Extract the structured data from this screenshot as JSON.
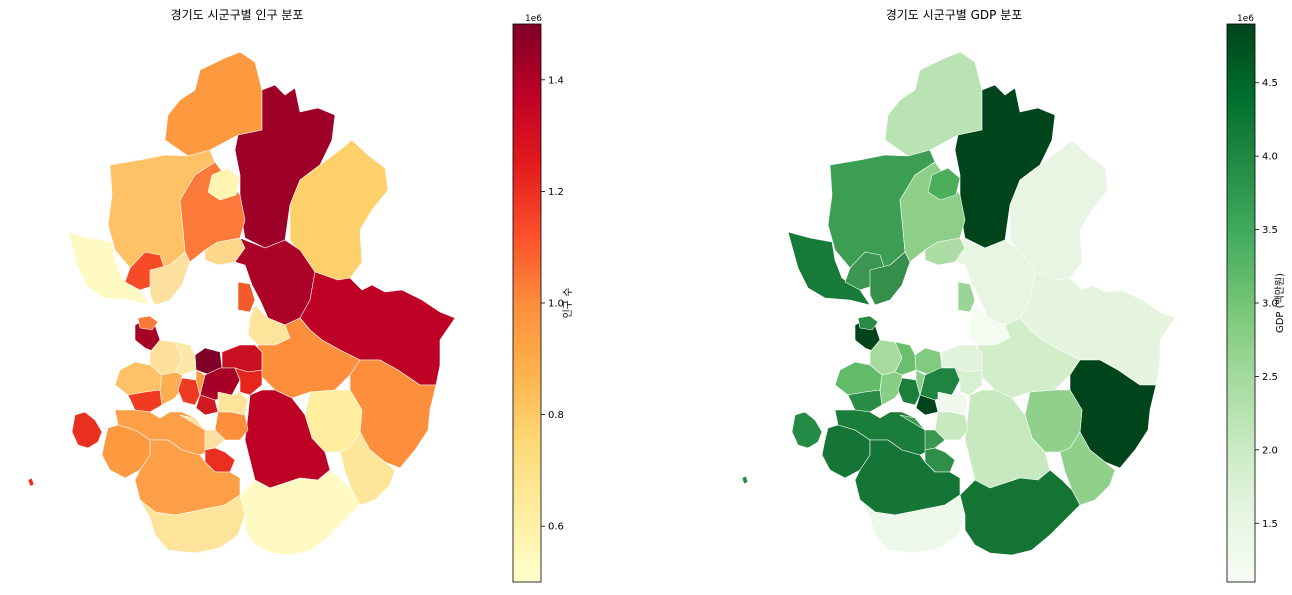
{
  "maps": [
    {
      "title": "경기도 시군구별 인구 분포",
      "colorbar": {
        "label": "인구 수",
        "offset_text": "1e6",
        "colormap": "YlOrRd",
        "range": [
          0.5,
          1.5
        ],
        "ticks": [
          "0.6",
          "0.8",
          "1.0",
          "1.2",
          "1.4"
        ],
        "tick_values": [
          0.6,
          0.8,
          1.0,
          1.2,
          1.4
        ],
        "stops": [
          "#ffffcc",
          "#ffeda0",
          "#fed976",
          "#feb24c",
          "#fd8d3c",
          "#fc4e2a",
          "#e31a1c",
          "#bd0026",
          "#800026"
        ]
      }
    },
    {
      "title": "경기도 시군구별 GDP 분포",
      "colorbar": {
        "label": "GDP (백만원)",
        "offset_text": "1e6",
        "colormap": "Greens",
        "range": [
          1.1,
          4.9
        ],
        "ticks": [
          "1.5",
          "2.0",
          "2.5",
          "3.0",
          "3.5",
          "4.0",
          "4.5"
        ],
        "tick_values": [
          1.5,
          2.0,
          2.5,
          3.0,
          3.5,
          4.0,
          4.5
        ],
        "stops": [
          "#f7fcf5",
          "#e5f5e0",
          "#c7e9c0",
          "#a1d99b",
          "#74c476",
          "#41ab5d",
          "#238b45",
          "#006d2c",
          "#00441b"
        ]
      }
    }
  ]
}
